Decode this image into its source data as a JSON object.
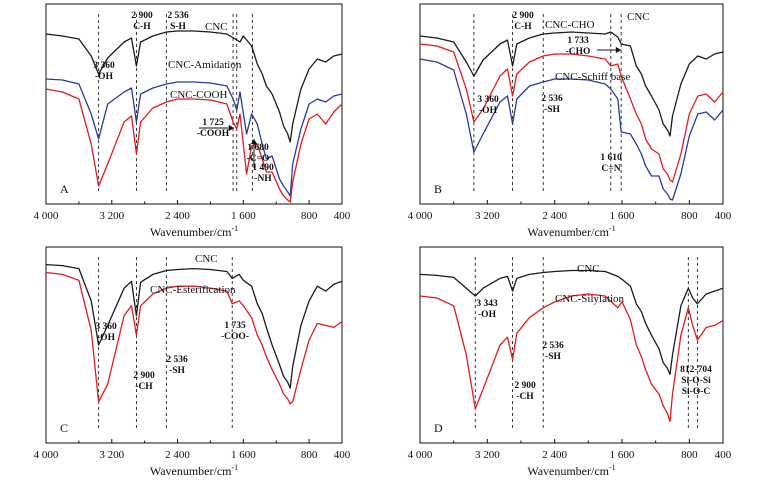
{
  "colors": {
    "black": "#1a1a1a",
    "red": "#e41a1c",
    "blue": "#2b3a9a"
  },
  "chart_data": [
    {
      "type": "line",
      "panel": "A",
      "xlabel": "Wavenumber/cm",
      "xlabel_sup": "-1",
      "xlim": [
        4000,
        400
      ],
      "x_ticks": [
        4000,
        3200,
        2400,
        1600,
        800,
        400
      ],
      "x_tick_labels": [
        "4 000",
        "3 200",
        "2 400",
        "1 600",
        "800",
        "400"
      ],
      "series": [
        {
          "name": "CNC",
          "color": "black",
          "x": [
            4000,
            3800,
            3600,
            3450,
            3360,
            3250,
            3050,
            2960,
            2900,
            2850,
            2700,
            2536,
            2400,
            2200,
            2000,
            1800,
            1720,
            1640,
            1600,
            1500,
            1430,
            1370,
            1320,
            1250,
            1160,
            1110,
            1060,
            1030,
            1000,
            900,
            800,
            700,
            600,
            500,
            400
          ],
          "y": [
            30,
            32,
            35,
            52,
            70,
            54,
            38,
            34,
            62,
            38,
            32,
            28,
            27,
            27,
            28,
            30,
            34,
            38,
            32,
            42,
            60,
            70,
            82,
            90,
            108,
            122,
            130,
            138,
            120,
            85,
            65,
            55,
            58,
            52,
            50
          ]
        },
        {
          "name": "CNC-Amidation",
          "color": "blue",
          "x": [
            4000,
            3800,
            3600,
            3450,
            3360,
            3250,
            3050,
            2960,
            2900,
            2850,
            2700,
            2536,
            2400,
            2200,
            2000,
            1800,
            1725,
            1680,
            1640,
            1560,
            1500,
            1430,
            1370,
            1320,
            1250,
            1160,
            1110,
            1060,
            1030,
            1000,
            900,
            800,
            700,
            600,
            500,
            400
          ],
          "y": [
            75,
            76,
            80,
            110,
            135,
            100,
            88,
            84,
            118,
            90,
            84,
            80,
            78,
            78,
            79,
            82,
            95,
            106,
            88,
            130,
            110,
            120,
            140,
            155,
            152,
            175,
            182,
            188,
            192,
            160,
            125,
            100,
            95,
            98,
            92,
            90
          ]
        },
        {
          "name": "CNC-COOH",
          "color": "red",
          "x": [
            4000,
            3800,
            3600,
            3450,
            3360,
            3250,
            3050,
            2960,
            2900,
            2850,
            2700,
            2536,
            2400,
            2200,
            2000,
            1800,
            1725,
            1680,
            1640,
            1560,
            1500,
            1430,
            1370,
            1320,
            1250,
            1160,
            1110,
            1060,
            1030,
            1000,
            900,
            800,
            700,
            600,
            500,
            400
          ],
          "y": [
            85,
            88,
            95,
            140,
            182,
            160,
            118,
            112,
            150,
            118,
            104,
            98,
            95,
            95,
            96,
            100,
            118,
            125,
            110,
            170,
            142,
            140,
            155,
            168,
            168,
            185,
            192,
            196,
            198,
            178,
            140,
            115,
            110,
            120,
            108,
            100
          ]
        }
      ],
      "annotations": [
        {
          "text": [
            "3 360",
            "-OH"
          ],
          "x": 3360
        },
        {
          "text": [
            "2 900",
            "C-H"
          ],
          "x": 2900
        },
        {
          "text": [
            "2 536",
            "S-H"
          ],
          "x": 2536
        },
        {
          "text": [
            "1 725",
            "-COOH"
          ],
          "x": 1725
        },
        {
          "text": [
            "1 680",
            "-C=O"
          ],
          "x": 1680
        },
        {
          "text": [
            "1 490",
            "-NH"
          ],
          "x": 1490
        }
      ]
    },
    {
      "type": "line",
      "panel": "B",
      "xlabel": "Wavenumber/cm",
      "xlabel_sup": "-1",
      "xlim": [
        4000,
        400
      ],
      "x_ticks": [
        4000,
        3200,
        2400,
        1600,
        800,
        400
      ],
      "x_tick_labels": [
        "4 000",
        "3 200",
        "2 400",
        "1 600",
        "800",
        "400"
      ],
      "series": [
        {
          "name": "CNC",
          "color": "black",
          "x": [
            4000,
            3800,
            3600,
            3450,
            3360,
            3250,
            3050,
            2960,
            2900,
            2850,
            2700,
            2536,
            2400,
            2200,
            2000,
            1800,
            1733,
            1650,
            1610,
            1500,
            1430,
            1370,
            1320,
            1250,
            1160,
            1110,
            1060,
            1030,
            1000,
            900,
            800,
            700,
            600,
            500,
            400
          ],
          "y": [
            32,
            34,
            38,
            58,
            72,
            56,
            40,
            36,
            62,
            40,
            34,
            30,
            29,
            28,
            29,
            30,
            28,
            33,
            40,
            42,
            62,
            70,
            82,
            92,
            106,
            120,
            126,
            132,
            112,
            80,
            60,
            52,
            55,
            50,
            48
          ]
        },
        {
          "name": "CNC-CHO",
          "color": "red",
          "x": [
            4000,
            3800,
            3600,
            3450,
            3360,
            3250,
            3050,
            2960,
            2900,
            2850,
            2700,
            2536,
            2400,
            2200,
            2000,
            1800,
            1733,
            1650,
            1610,
            1500,
            1430,
            1370,
            1320,
            1250,
            1160,
            1110,
            1060,
            1030,
            1000,
            900,
            800,
            700,
            600,
            500,
            400
          ],
          "y": [
            40,
            42,
            48,
            85,
            118,
            105,
            72,
            65,
            92,
            70,
            58,
            52,
            50,
            50,
            52,
            55,
            62,
            60,
            72,
            95,
            110,
            120,
            135,
            145,
            150,
            165,
            170,
            176,
            178,
            150,
            110,
            92,
            90,
            98,
            88
          ]
        },
        {
          "name": "CNC-Schiff base",
          "color": "blue",
          "x": [
            4000,
            3800,
            3600,
            3450,
            3360,
            3250,
            3050,
            2960,
            2900,
            2850,
            2700,
            2536,
            2400,
            2200,
            2000,
            1800,
            1733,
            1650,
            1610,
            1500,
            1430,
            1370,
            1320,
            1250,
            1160,
            1110,
            1060,
            1030,
            1000,
            900,
            800,
            700,
            600,
            500,
            400
          ],
          "y": [
            55,
            58,
            66,
            110,
            148,
            130,
            98,
            92,
            120,
            95,
            82,
            78,
            75,
            75,
            76,
            80,
            85,
            95,
            128,
            130,
            140,
            150,
            162,
            172,
            172,
            185,
            190,
            195,
            196,
            170,
            132,
            110,
            108,
            116,
            106
          ]
        }
      ],
      "annotations": [
        {
          "text": [
            "3 360",
            "-OH"
          ],
          "x": 3360
        },
        {
          "text": [
            "2 900",
            "C-H"
          ],
          "x": 2900
        },
        {
          "text": [
            "2 536",
            "-SH"
          ],
          "x": 2536
        },
        {
          "text": [
            "1 733",
            "-CHO"
          ],
          "x": 1733
        },
        {
          "text": [
            "1 610",
            "C=N"
          ],
          "x": 1610
        }
      ]
    },
    {
      "type": "line",
      "panel": "C",
      "xlabel": "Wavenumber/cm",
      "xlabel_sup": "-1",
      "xlim": [
        4000,
        400
      ],
      "x_ticks": [
        4000,
        3200,
        2400,
        1600,
        800,
        400
      ],
      "x_tick_labels": [
        "4 000",
        "3 200",
        "2 400",
        "1 600",
        "800",
        "400"
      ],
      "series": [
        {
          "name": "CNC",
          "color": "black",
          "x": [
            4000,
            3800,
            3600,
            3450,
            3360,
            3250,
            3050,
            2960,
            2900,
            2850,
            2700,
            2536,
            2400,
            2200,
            2000,
            1800,
            1735,
            1650,
            1600,
            1500,
            1430,
            1370,
            1320,
            1250,
            1160,
            1110,
            1060,
            1030,
            1000,
            900,
            800,
            700,
            600,
            500,
            400
          ],
          "y": [
            18,
            19,
            22,
            55,
            100,
            80,
            42,
            35,
            70,
            36,
            28,
            24,
            23,
            22,
            23,
            25,
            32,
            28,
            34,
            40,
            58,
            68,
            82,
            100,
            120,
            132,
            138,
            144,
            122,
            80,
            55,
            40,
            45,
            38,
            35
          ]
        },
        {
          "name": "CNC-Esterification",
          "color": "red",
          "x": [
            4000,
            3800,
            3600,
            3450,
            3360,
            3250,
            3050,
            2960,
            2900,
            2850,
            2700,
            2536,
            2400,
            2200,
            2000,
            1800,
            1735,
            1650,
            1600,
            1500,
            1430,
            1370,
            1320,
            1250,
            1160,
            1110,
            1060,
            1030,
            1000,
            900,
            800,
            700,
            600,
            500,
            400
          ],
          "y": [
            26,
            28,
            34,
            85,
            158,
            140,
            70,
            60,
            90,
            60,
            48,
            42,
            40,
            40,
            42,
            45,
            58,
            55,
            60,
            72,
            90,
            100,
            112,
            125,
            140,
            150,
            155,
            160,
            158,
            125,
            95,
            78,
            80,
            82,
            76
          ]
        }
      ],
      "annotations": [
        {
          "text": [
            "3 360",
            "-OH"
          ],
          "x": 3360
        },
        {
          "text": [
            "2 900",
            "-CH"
          ],
          "x": 2900
        },
        {
          "text": [
            "2 536",
            "-SH"
          ],
          "x": 2536
        },
        {
          "text": [
            "1 735",
            "-COO-"
          ],
          "x": 1735
        }
      ]
    },
    {
      "type": "line",
      "panel": "D",
      "xlabel": "Wavenumber/cm",
      "xlabel_sup": "-1",
      "xlim": [
        4000,
        400
      ],
      "x_ticks": [
        4000,
        3200,
        2400,
        1600,
        800,
        400
      ],
      "x_tick_labels": [
        "4 000",
        "3 200",
        "2 400",
        "1 600",
        "800",
        "400"
      ],
      "series": [
        {
          "name": "CNC",
          "color": "black",
          "x": [
            4000,
            3800,
            3600,
            3450,
            3343,
            3250,
            3050,
            2960,
            2900,
            2850,
            2700,
            2536,
            2400,
            2200,
            2000,
            1800,
            1650,
            1600,
            1500,
            1430,
            1370,
            1320,
            1250,
            1160,
            1110,
            1060,
            1030,
            1000,
            900,
            812,
            760,
            704,
            600,
            500,
            400
          ],
          "y": [
            28,
            29,
            31,
            42,
            50,
            42,
            32,
            30,
            45,
            32,
            28,
            26,
            25,
            24,
            24,
            25,
            30,
            33,
            40,
            58,
            66,
            78,
            90,
            104,
            118,
            124,
            130,
            110,
            60,
            42,
            52,
            58,
            48,
            45,
            42
          ]
        },
        {
          "name": "CNC-Silylation",
          "color": "red",
          "x": [
            4000,
            3800,
            3600,
            3450,
            3343,
            3250,
            3050,
            2960,
            2900,
            2850,
            2700,
            2536,
            2400,
            2200,
            2000,
            1800,
            1650,
            1600,
            1500,
            1430,
            1370,
            1320,
            1250,
            1160,
            1110,
            1060,
            1030,
            1000,
            900,
            812,
            760,
            704,
            600,
            500,
            400
          ],
          "y": [
            50,
            52,
            60,
            110,
            165,
            145,
            100,
            92,
            115,
            88,
            72,
            62,
            56,
            50,
            48,
            50,
            62,
            56,
            74,
            100,
            112,
            125,
            140,
            150,
            162,
            170,
            178,
            150,
            90,
            62,
            80,
            95,
            82,
            80,
            75
          ]
        }
      ],
      "annotations": [
        {
          "text": [
            "3 343",
            "-OH"
          ],
          "x": 3343
        },
        {
          "text": [
            "2 900",
            "-CH"
          ],
          "x": 2900
        },
        {
          "text": [
            "2 536",
            "-SH"
          ],
          "x": 2536
        },
        {
          "text": [
            "812-704",
            "Si-O-Si",
            "Si-O-C"
          ],
          "x": 758
        }
      ]
    }
  ]
}
